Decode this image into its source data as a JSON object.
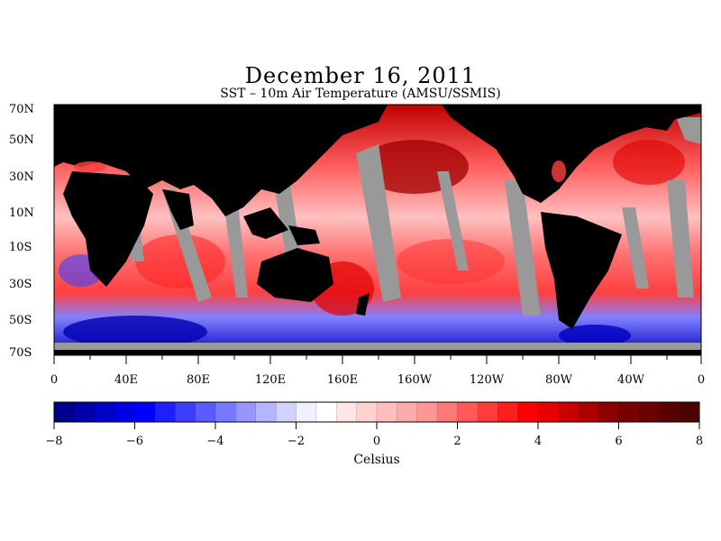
{
  "title": "December 16, 2011",
  "subtitle": "SST – 10m Air Temperature (AMSU/SSMIS)",
  "map": {
    "lat_labels": [
      "70N",
      "50N",
      "30N",
      "10N",
      "10S",
      "30S",
      "50S",
      "70S"
    ],
    "lon_labels": [
      "0",
      "40E",
      "80E",
      "120E",
      "160E",
      "160W",
      "120W",
      "80W",
      "40W",
      "0"
    ],
    "land_color": "#000000",
    "missing_color": "#999999"
  },
  "colorbar": {
    "min": -8,
    "max": 8,
    "step": 0.5,
    "tick_labels": [
      "−8",
      "−6",
      "−4",
      "−2",
      "0",
      "2",
      "4",
      "6",
      "8"
    ],
    "unit": "Celsius",
    "colors": [
      "#00008c",
      "#0000aa",
      "#0000c8",
      "#0000e6",
      "#0000ff",
      "#1e1eff",
      "#3c3cff",
      "#5a5aff",
      "#7878ff",
      "#9696ff",
      "#b4b4ff",
      "#d2d2ff",
      "#f0f0ff",
      "#ffffff",
      "#ffe6e6",
      "#ffd2d2",
      "#ffbebe",
      "#ffaaaa",
      "#ff9696",
      "#ff7878",
      "#ff5a5a",
      "#ff3c3c",
      "#ff1e1e",
      "#ff0000",
      "#e60000",
      "#c80000",
      "#aa0000",
      "#8c0000",
      "#7a0000",
      "#6a0000",
      "#5a0000",
      "#4d0000"
    ]
  }
}
